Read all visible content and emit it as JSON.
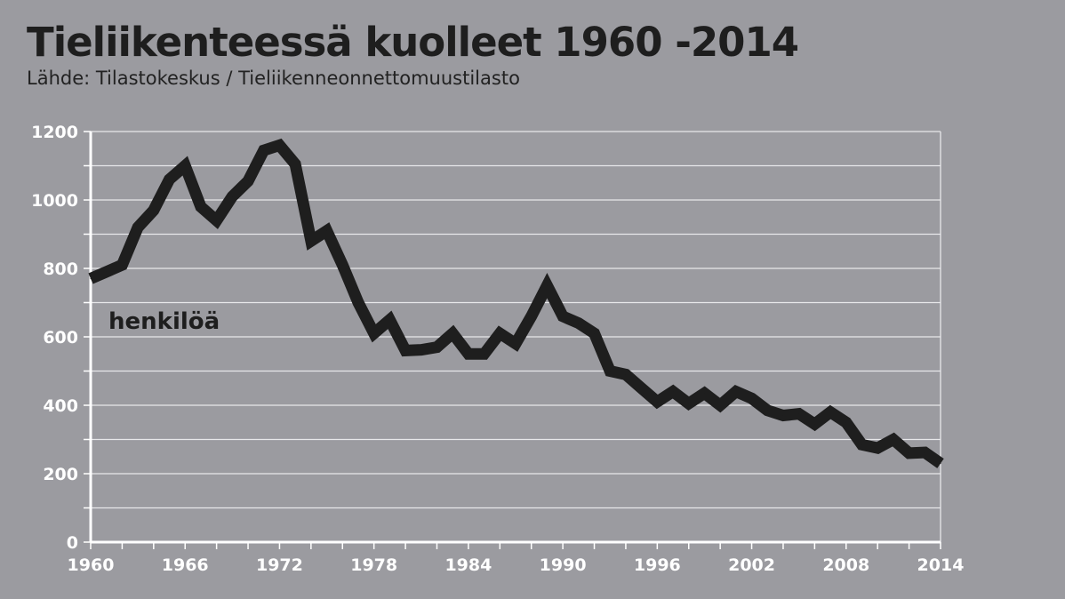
{
  "title": "Tieliikenteessä kuolleet 1960 -2014",
  "subtitle": "Lähde: Tilastokeskus / Tieliikenneonnettomuustilasto",
  "chart_data": {
    "type": "line",
    "title": "Tieliikenteessä kuolleet 1960 -2014",
    "unit_label": "henkilöä",
    "xlabel": "",
    "ylabel": "",
    "xlim": [
      1960,
      2014
    ],
    "ylim": [
      0,
      1200
    ],
    "grid": true,
    "x_ticks": [
      1960,
      1966,
      1972,
      1978,
      1984,
      1990,
      1996,
      2002,
      2008,
      2014
    ],
    "y_ticks": [
      0,
      200,
      400,
      600,
      800,
      1000,
      1200
    ],
    "line_color": "#1e1e1e",
    "series": [
      {
        "x": [
          1960,
          1961,
          1962,
          1963,
          1964,
          1965,
          1966,
          1967,
          1968,
          1969,
          1970,
          1971,
          1972,
          1973,
          1974,
          1975,
          1976,
          1977,
          1978,
          1979,
          1980,
          1981,
          1982,
          1983,
          1984,
          1985,
          1986,
          1987,
          1988,
          1989,
          1990,
          1991,
          1992,
          1993,
          1994,
          1995,
          1996,
          1997,
          1998,
          1999,
          2000,
          2001,
          2002,
          2003,
          2004,
          2005,
          2006,
          2007,
          2008,
          2009,
          2010,
          2011,
          2012,
          2013,
          2014
        ],
        "values": [
          770,
          790,
          810,
          920,
          970,
          1060,
          1100,
          980,
          940,
          1010,
          1055,
          1145,
          1160,
          1105,
          880,
          910,
          810,
          700,
          610,
          650,
          560,
          562,
          570,
          610,
          550,
          550,
          610,
          580,
          660,
          750,
          660,
          640,
          610,
          500,
          490,
          450,
          410,
          440,
          405,
          435,
          400,
          440,
          420,
          385,
          370,
          375,
          345,
          380,
          350,
          285,
          275,
          300,
          260,
          262,
          230
        ]
      }
    ]
  },
  "colors": {
    "background": "#9b9ba0",
    "line": "#1e1e1e",
    "grid": "#e8e8ea",
    "tick_text": "#ffffff"
  }
}
